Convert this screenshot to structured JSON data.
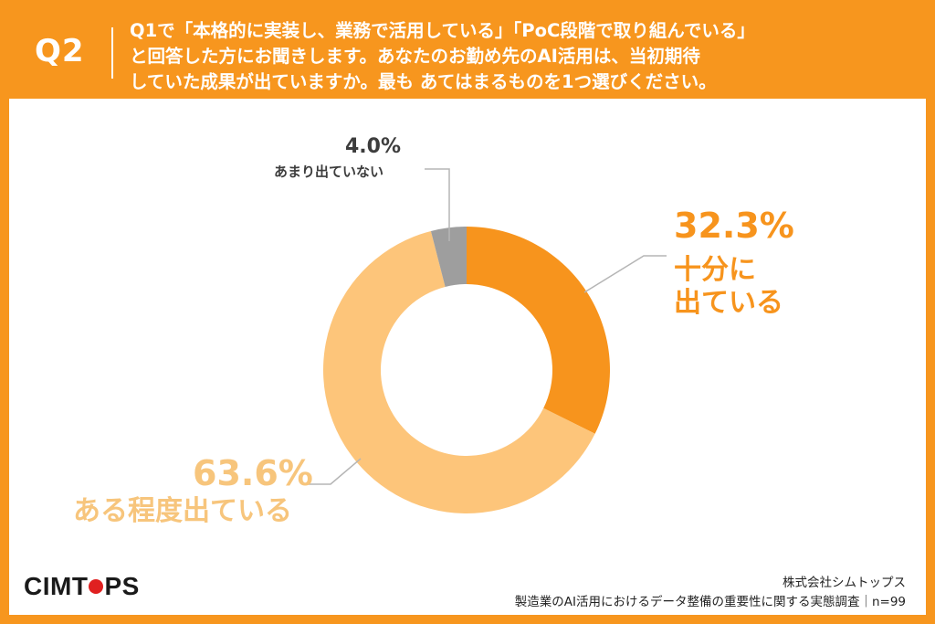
{
  "question": {
    "label": "Q2",
    "lines": [
      "Q1で「本格的に実装し、業務で活用している」「PoC段階で取り組んでいる」",
      "と回答した方にお聞きします。あなたのお勤め先のAI活用は、当初期待",
      "していた成果が出ていますか。最も あてはまるものを1つ選びください。"
    ]
  },
  "chart_data": {
    "type": "pie",
    "style": "donut",
    "slices": [
      {
        "label": "十分に出ている",
        "value": 32.3,
        "display": "32.3%",
        "label_line1": "十分に",
        "label_line2": "出ている",
        "color": "#f7941d"
      },
      {
        "label": "ある程度出ている",
        "value": 63.6,
        "display": "63.6%",
        "color": "#fdc57a"
      },
      {
        "label": "あまり出ていない",
        "value": 4.0,
        "display": "4.0%",
        "color": "#9e9e9e"
      }
    ]
  },
  "footer": {
    "logo_left": "CIMT",
    "logo_right": "PS",
    "company": "株式会社シムトップス",
    "survey": "製造業のAI活用におけるデータ整備の重要性に関する実態調査｜n=99"
  },
  "colors": {
    "background": "#f7961e",
    "panel": "#ffffff",
    "logo_dot": "#e02020"
  }
}
